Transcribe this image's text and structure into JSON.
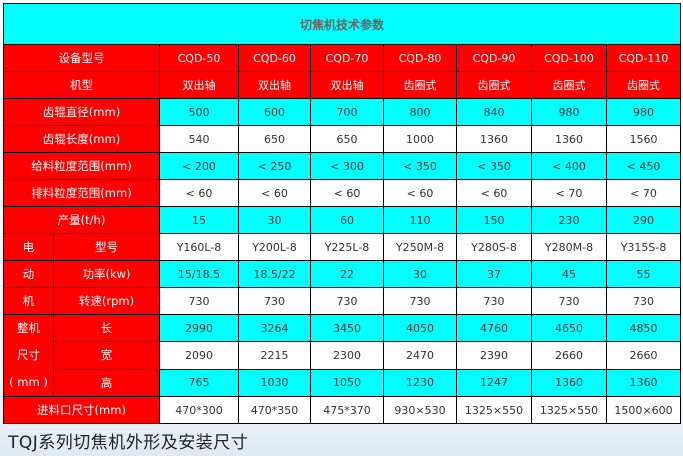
{
  "title": "切焦机技术参数",
  "models": [
    "CQD-50",
    "CQD-60",
    "CQD-70",
    "CQD-80",
    "CQD-90",
    "CQD-100",
    "CQD-110"
  ],
  "rows": {
    "model": {
      "label": "设备型号"
    },
    "type": {
      "label": "机型",
      "values": [
        "双出轴",
        "双出轴",
        "双出轴",
        "齿圈式",
        "齿圈式",
        "齿圈式",
        "齿圈式"
      ]
    },
    "roll_dia": {
      "label": "齿辊直径(mm)",
      "values": [
        "500",
        "600",
        "700",
        "800",
        "840",
        "980",
        "980"
      ]
    },
    "roll_len": {
      "label": "齿辊长度(mm)",
      "values": [
        "540",
        "650",
        "650",
        "1000",
        "1360",
        "1360",
        "1560"
      ]
    },
    "feed_size": {
      "label": "给料粒度范围(mm)",
      "values": [
        "< 200",
        "< 250",
        "< 300",
        "< 350",
        "< 350",
        "< 400",
        "< 450"
      ]
    },
    "discharge_size": {
      "label": "排料粒度范围(mm)",
      "values": [
        "< 60",
        "< 60",
        "< 60",
        "< 60",
        "< 60",
        "< 70",
        "< 70"
      ]
    },
    "capacity": {
      "label": "产量(t/h)",
      "values": [
        "15",
        "30",
        "60",
        "110",
        "150",
        "230",
        "290"
      ]
    },
    "motor_group": [
      "电",
      "动",
      "机"
    ],
    "motor_model": {
      "label": "型号",
      "values": [
        "Y160L-8",
        "Y200L-8",
        "Y225L-8",
        "Y250M-8",
        "Y280S-8",
        "Y280M-8",
        "Y315S-8"
      ]
    },
    "motor_power": {
      "label": "功率(kw)",
      "values": [
        "15/18.5",
        "18.5/22",
        "22",
        "30",
        "37",
        "45",
        "55"
      ]
    },
    "motor_speed": {
      "label": "转速(rpm)",
      "values": [
        "730",
        "730",
        "730",
        "730",
        "730",
        "730",
        "730"
      ]
    },
    "dim_group": [
      "整机",
      "尺寸",
      "( mm )"
    ],
    "length": {
      "label": "长",
      "values": [
        "2990",
        "3264",
        "3450",
        "4050",
        "4760",
        "4650",
        "4850"
      ]
    },
    "width": {
      "label": "宽",
      "values": [
        "2090",
        "2215",
        "2300",
        "2470",
        "2390",
        "2660",
        "2660"
      ]
    },
    "height": {
      "label": "高",
      "values": [
        "765",
        "1030",
        "1050",
        "1230",
        "1247",
        "1360",
        "1360"
      ]
    },
    "inlet": {
      "label": "进料口尺寸(mm)",
      "values": [
        "470*300",
        "470*350",
        "475*370",
        "930×530",
        "1325×550",
        "1325×550",
        "1500×600"
      ]
    }
  },
  "caption": "TQJ系列切焦机外形及安装尺寸",
  "colors": {
    "header": "#ff0000",
    "highlight": "#00ffff"
  }
}
